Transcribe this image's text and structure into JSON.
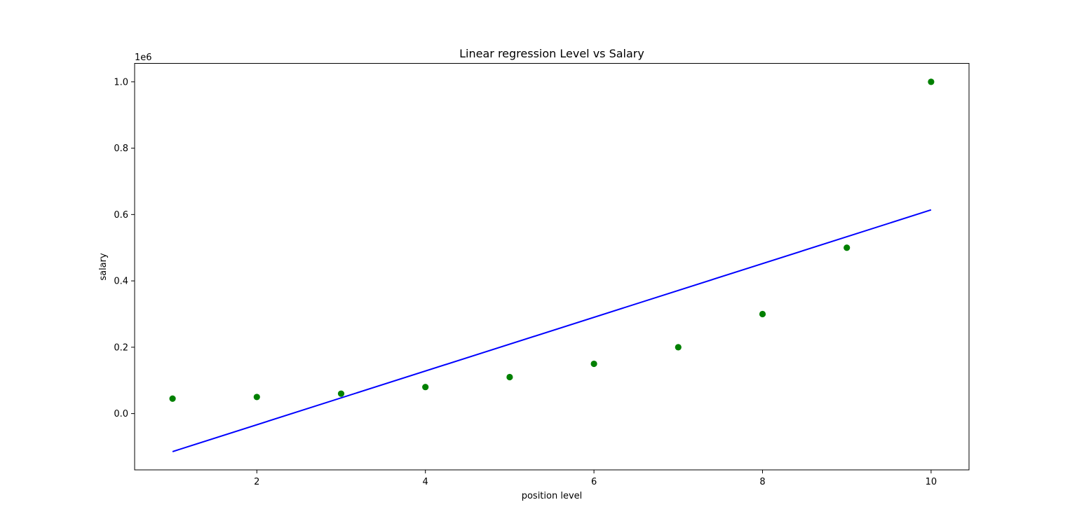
{
  "chart_data": {
    "type": "scatter",
    "title": "Linear regression Level vs Salary",
    "xlabel": "position level",
    "ylabel": "salary",
    "y_offset_label": "1e6",
    "xlim": [
      0.55,
      10.45
    ],
    "ylim": [
      -0.1697,
      1.0556
    ],
    "x_ticks": [
      2,
      4,
      6,
      8,
      10
    ],
    "x_tick_labels": [
      "2",
      "4",
      "6",
      "8",
      "10"
    ],
    "y_ticks": [
      0.0,
      0.2,
      0.4,
      0.6,
      0.8,
      1.0
    ],
    "y_tick_labels": [
      "0.0",
      "0.2",
      "0.4",
      "0.6",
      "0.8",
      "1.0"
    ],
    "grid": false,
    "scatter_series": {
      "color": "#008000",
      "x": [
        1,
        2,
        3,
        4,
        5,
        6,
        7,
        8,
        9,
        10
      ],
      "y": [
        0.045,
        0.05,
        0.06,
        0.08,
        0.11,
        0.15,
        0.2,
        0.3,
        0.5,
        1.0
      ]
    },
    "line_series": {
      "color": "#0000ff",
      "x": [
        1,
        10
      ],
      "y": [
        -0.1146,
        0.614
      ]
    }
  }
}
